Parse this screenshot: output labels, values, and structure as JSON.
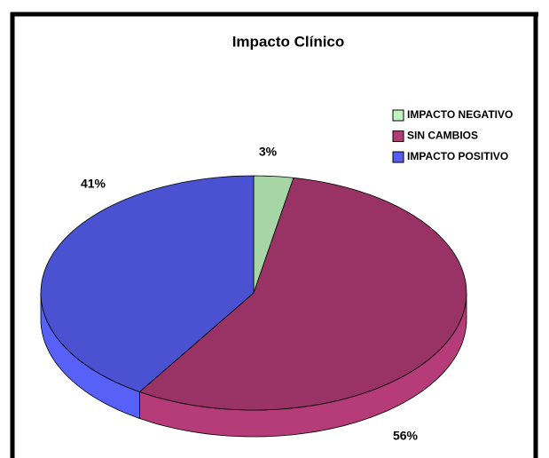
{
  "chart_data": {
    "type": "pie",
    "title": "Impacto Clínico",
    "categories": [
      "IMPACTO NEGATIVO",
      "SIN CAMBIOS",
      "IMPACTO POSITIVO"
    ],
    "values": [
      3,
      56,
      41
    ],
    "value_labels": [
      "3%",
      "56%",
      "41%"
    ],
    "colors": [
      "#a6d6a6",
      "#993366",
      "#4a52d2"
    ],
    "legend": "top-right"
  }
}
